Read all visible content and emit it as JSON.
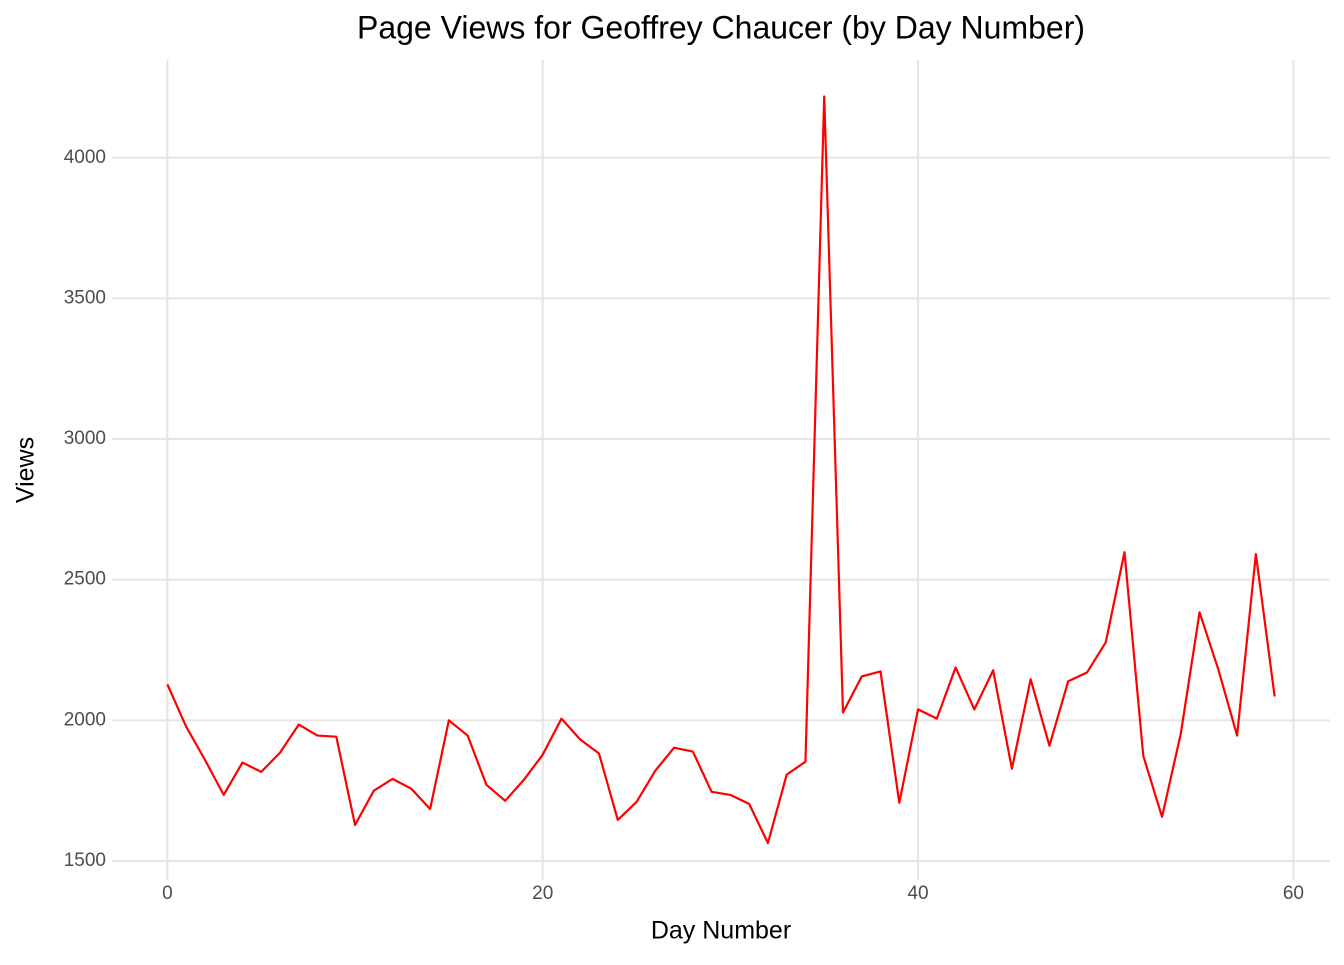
{
  "chart_data": {
    "type": "line",
    "title": "Page Views for Geoffrey Chaucer (by Day Number)",
    "x_label": "Day Number",
    "y_label": "Views",
    "x": [
      0,
      1,
      2,
      3,
      4,
      5,
      6,
      7,
      8,
      9,
      10,
      11,
      12,
      13,
      14,
      15,
      16,
      17,
      18,
      19,
      20,
      21,
      22,
      23,
      24,
      25,
      26,
      27,
      28,
      29,
      30,
      31,
      32,
      33,
      34,
      35,
      36,
      37,
      38,
      39,
      40,
      41,
      42,
      43,
      44,
      45,
      46,
      47,
      48,
      49,
      50,
      51,
      52,
      53,
      54,
      55,
      56,
      57,
      58,
      59
    ],
    "series": [
      {
        "name": "Views",
        "color": "#ff0000",
        "values": [
          2128,
          1978,
          1860,
          1735,
          1850,
          1817,
          1885,
          1985,
          1946,
          1942,
          1628,
          1750,
          1792,
          1757,
          1685,
          2000,
          1946,
          1771,
          1714,
          1789,
          1878,
          2006,
          1932,
          1882,
          1646,
          1710,
          1821,
          1903,
          1889,
          1746,
          1735,
          1703,
          1564,
          1807,
          1853,
          4218,
          2028,
          2156,
          2174,
          1707,
          2039,
          2006,
          2188,
          2039,
          2178,
          1828,
          2146,
          1910,
          2139,
          2170,
          2277,
          2598,
          1874,
          1657,
          1953,
          2384,
          2181,
          1946,
          2591,
          2085
        ]
      }
    ],
    "xlim": [
      -2.95,
      61.95
    ],
    "ylim": [
      1432.5,
      4347.5
    ],
    "xticks": [
      0,
      20,
      40,
      60
    ],
    "yticks": [
      1500,
      2000,
      2500,
      3000,
      3500,
      4000
    ],
    "grid": true
  }
}
